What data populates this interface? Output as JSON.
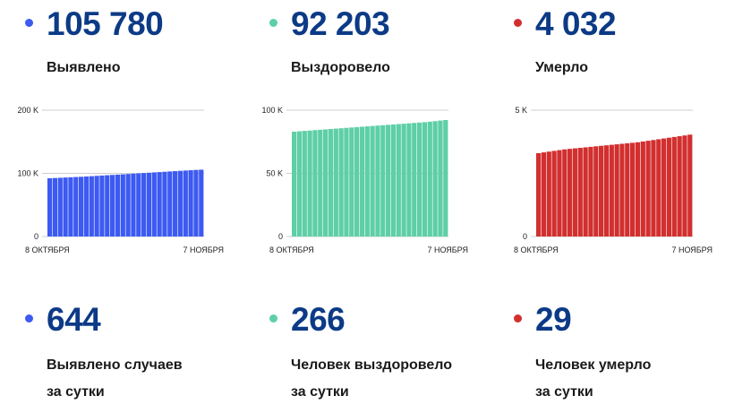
{
  "panels": [
    {
      "value": "105 780",
      "label": "Выявлено",
      "daily_value": "644",
      "daily_label_line1": "Выявлено случаев",
      "daily_label_line2": "за сутки",
      "color": "#3d5af1"
    },
    {
      "value": "92 203",
      "label": "Выздоровело",
      "daily_value": "266",
      "daily_label_line1": "Человек выздоровело",
      "daily_label_line2": "за сутки",
      "color": "#5ecfa7"
    },
    {
      "value": "4 032",
      "label": "Умерло",
      "daily_value": "29",
      "daily_label_line1": "Человек умерло",
      "daily_label_line2": "за сутки",
      "color": "#d22f2f"
    }
  ],
  "chart_data": [
    {
      "type": "bar",
      "x_start_label": "8 ОКТЯБРЯ",
      "x_end_label": "7 НОЯБРЯ",
      "yticks": [
        0,
        100000,
        200000
      ],
      "ytick_labels": [
        "0",
        "100 K",
        "200 K"
      ],
      "ylim": [
        0,
        200000
      ],
      "values": [
        92200,
        92600,
        93000,
        93400,
        93800,
        94200,
        94600,
        95000,
        95500,
        96000,
        96500,
        97000,
        97500,
        98000,
        98500,
        99000,
        99500,
        100000,
        100500,
        101000,
        101500,
        102000,
        102500,
        103000,
        103500,
        104000,
        104500,
        105000,
        105400,
        105780
      ],
      "color": "#3d5af1"
    },
    {
      "type": "bar",
      "x_start_label": "8 ОКТЯБРЯ",
      "x_end_label": "7 НОЯБРЯ",
      "yticks": [
        0,
        50000,
        100000
      ],
      "ytick_labels": [
        "0",
        "50 K",
        "100 K"
      ],
      "ylim": [
        0,
        100000
      ],
      "values": [
        83000,
        83300,
        83600,
        83900,
        84200,
        84500,
        84800,
        85100,
        85400,
        85700,
        86000,
        86300,
        86600,
        86900,
        87200,
        87500,
        87800,
        88100,
        88400,
        88700,
        89000,
        89300,
        89600,
        89900,
        90200,
        90500,
        90900,
        91300,
        91800,
        92203
      ],
      "color": "#5ecfa7"
    },
    {
      "type": "bar",
      "x_start_label": "8 ОКТЯБРЯ",
      "x_end_label": "7 НОЯБРЯ",
      "yticks": [
        0,
        5000
      ],
      "ytick_labels": [
        "0",
        "5 K"
      ],
      "ylim": [
        0,
        5000
      ],
      "values": [
        3300,
        3330,
        3360,
        3390,
        3420,
        3450,
        3470,
        3490,
        3510,
        3530,
        3550,
        3570,
        3590,
        3610,
        3630,
        3650,
        3670,
        3690,
        3710,
        3730,
        3760,
        3790,
        3820,
        3850,
        3880,
        3910,
        3940,
        3970,
        4000,
        4032
      ],
      "color": "#d22f2f"
    }
  ]
}
